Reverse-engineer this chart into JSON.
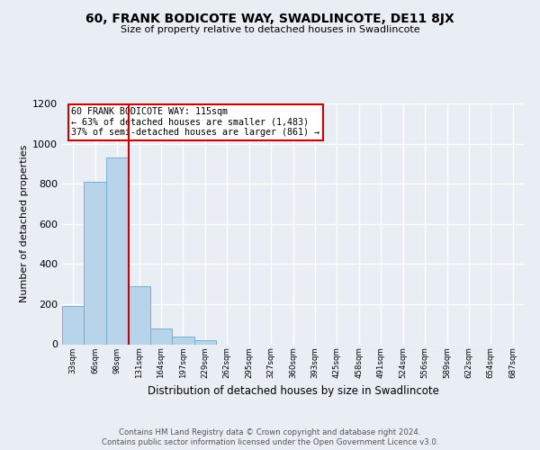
{
  "title": "60, FRANK BODICOTE WAY, SWADLINCOTE, DE11 8JX",
  "subtitle": "Size of property relative to detached houses in Swadlincote",
  "xlabel": "Distribution of detached houses by size in Swadlincote",
  "ylabel": "Number of detached properties",
  "bin_labels": [
    "33sqm",
    "66sqm",
    "98sqm",
    "131sqm",
    "164sqm",
    "197sqm",
    "229sqm",
    "262sqm",
    "295sqm",
    "327sqm",
    "360sqm",
    "393sqm",
    "425sqm",
    "458sqm",
    "491sqm",
    "524sqm",
    "556sqm",
    "589sqm",
    "622sqm",
    "654sqm",
    "687sqm"
  ],
  "bin_values": [
    190,
    810,
    930,
    290,
    80,
    38,
    18,
    0,
    0,
    0,
    0,
    0,
    0,
    0,
    0,
    0,
    0,
    0,
    0,
    0,
    0
  ],
  "bar_color": "#b8d4ea",
  "bar_edge_color": "#7aaec8",
  "vline_color": "#cc0000",
  "annotation_title": "60 FRANK BODICOTE WAY: 115sqm",
  "annotation_line1": "← 63% of detached houses are smaller (1,483)",
  "annotation_line2": "37% of semi-detached houses are larger (861) →",
  "annotation_box_color": "#ffffff",
  "annotation_box_edge": "#cc0000",
  "ylim": [
    0,
    1200
  ],
  "yticks": [
    0,
    200,
    400,
    600,
    800,
    1000,
    1200
  ],
  "footer1": "Contains HM Land Registry data © Crown copyright and database right 2024.",
  "footer2": "Contains public sector information licensed under the Open Government Licence v3.0.",
  "background_color": "#e8eef4",
  "plot_bg_color": "#e8eef4",
  "grid_color": "#ffffff",
  "num_bins": 21,
  "bin_width": 33,
  "vline_x": 115
}
